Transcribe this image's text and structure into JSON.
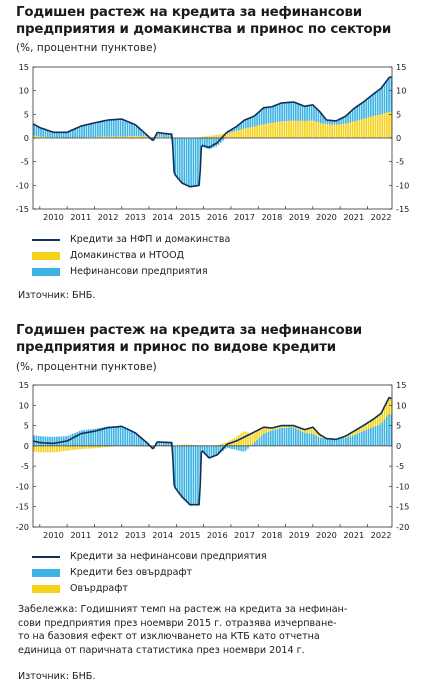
{
  "colors": {
    "line": "#10305a",
    "blue": "#3db3e3",
    "yellow": "#f6d21b",
    "axis": "#333333"
  },
  "chart1": {
    "title_lines": [
      "Годишен растеж на кредита за нефинансови",
      "предприятия и домакинства и принос по сектори"
    ],
    "units": "(%, процентни пунктове)",
    "source": "Източник: БНБ.",
    "legend": [
      "Кредити за НФП и домакинства",
      "Домакинства и НТООД",
      "Нефинансови предприятия"
    ]
  },
  "chart2": {
    "title_lines": [
      "Годишен растеж на кредита за нефинансови",
      "предприятия и принос по видове кредити"
    ],
    "units": "(%, процентни пунктове)",
    "legend": [
      "Кредити за нефинансови предприятия",
      "Кредити без овърдрафт",
      "Овърдрафт"
    ],
    "note_lines": [
      "Забележка: Годишният темп на растеж на кредита за нефинан-",
      "сови предприятия през ноември 2015 г. отразява изчерпване-",
      "то на базовия ефект от изключването на КТБ като отчетна",
      "единица от паричната статистика през ноември 2014 г."
    ],
    "source": "Източник: БНБ."
  },
  "chart_data": [
    {
      "type": "bar",
      "stacked": true,
      "title": "Годишен растеж на кредита за нефинансови предприятия и домакинства и принос по сектори",
      "ylabel": "(%, процентни пунктове)",
      "x_ticks": [
        "2010",
        "2011",
        "2012",
        "2013",
        "2014",
        "2015",
        "2016",
        "2017",
        "2018",
        "2019",
        "2020",
        "2021",
        "2022"
      ],
      "x_range": [
        2009.75,
        2022.9
      ],
      "ylim": [
        -15,
        15
      ],
      "y_ticks": [
        -15,
        -10,
        -5,
        0,
        5,
        10,
        15
      ],
      "dual_y_axis": true,
      "grid": false,
      "legend_position": "below",
      "anchors_x": [
        2009.75,
        2010.0,
        2010.5,
        2011.0,
        2011.5,
        2012.0,
        2012.5,
        2013.0,
        2013.5,
        2013.95,
        2014.15,
        2014.3,
        2014.5,
        2014.85,
        2014.92,
        2015.2,
        2015.5,
        2015.85,
        2015.92,
        2016.2,
        2016.5,
        2016.85,
        2017.2,
        2017.5,
        2017.85,
        2018.2,
        2018.5,
        2018.85,
        2019.3,
        2019.7,
        2020.0,
        2020.25,
        2020.5,
        2020.85,
        2021.2,
        2021.5,
        2021.85,
        2022.2,
        2022.5,
        2022.8,
        2022.9
      ],
      "series": [
        {
          "name": "Кредити за НФП и домакинства",
          "kind": "line",
          "values": [
            3.0,
            2.2,
            1.2,
            1.2,
            2.5,
            3.2,
            3.8,
            4.0,
            2.8,
            0.5,
            -0.6,
            1.2,
            1.0,
            0.8,
            -7.5,
            -9.5,
            -10.3,
            -10.0,
            -1.5,
            -2.0,
            -1.0,
            1.2,
            2.4,
            3.8,
            4.6,
            6.4,
            6.6,
            7.4,
            7.6,
            6.7,
            7.0,
            5.6,
            3.8,
            3.6,
            4.6,
            6.2,
            7.6,
            9.2,
            10.5,
            12.8,
            13.0
          ]
        },
        {
          "name": "Домакинства и НТООД",
          "kind": "bar",
          "color": "yellow",
          "values": [
            0.5,
            0.3,
            0.1,
            0.0,
            0.1,
            0.2,
            0.3,
            0.3,
            0.4,
            0.3,
            0.2,
            0.3,
            0.2,
            0.1,
            0.1,
            -0.1,
            -0.1,
            0.1,
            0.3,
            0.4,
            0.7,
            1.0,
            1.5,
            2.0,
            2.4,
            2.9,
            3.2,
            3.5,
            3.7,
            3.6,
            3.7,
            3.2,
            2.9,
            2.8,
            3.0,
            3.5,
            4.0,
            4.6,
            5.0,
            5.5,
            5.6
          ]
        },
        {
          "name": "Нефинансови предприятия",
          "kind": "bar",
          "color": "blue",
          "values": [
            2.5,
            1.9,
            1.1,
            1.2,
            2.4,
            3.0,
            3.5,
            3.7,
            2.4,
            0.2,
            -0.8,
            0.9,
            0.8,
            0.7,
            -7.6,
            -9.4,
            -10.2,
            -10.1,
            -1.8,
            -2.4,
            -1.7,
            0.2,
            0.9,
            1.8,
            2.2,
            3.5,
            3.4,
            3.9,
            3.9,
            3.1,
            3.3,
            2.4,
            0.9,
            0.8,
            1.6,
            2.7,
            3.6,
            4.6,
            5.5,
            7.3,
            7.4
          ]
        }
      ]
    },
    {
      "type": "bar",
      "stacked": true,
      "title": "Годишен растеж на кредита за нефинансови предприятия и принос по видове кредити",
      "ylabel": "(%, процентни пунктове)",
      "x_ticks": [
        "2010",
        "2011",
        "2012",
        "2013",
        "2014",
        "2015",
        "2016",
        "2017",
        "2018",
        "2019",
        "2020",
        "2021",
        "2022"
      ],
      "x_range": [
        2009.75,
        2022.9
      ],
      "ylim": [
        -20,
        15
      ],
      "y_ticks": [
        -20,
        -15,
        -10,
        -5,
        0,
        5,
        10,
        15
      ],
      "dual_y_axis": true,
      "grid": false,
      "legend_position": "below",
      "anchors_x": [
        2009.75,
        2010.0,
        2010.5,
        2011.0,
        2011.5,
        2012.0,
        2012.5,
        2013.0,
        2013.5,
        2013.95,
        2014.15,
        2014.3,
        2014.5,
        2014.85,
        2014.92,
        2015.2,
        2015.5,
        2015.85,
        2015.92,
        2016.2,
        2016.5,
        2016.85,
        2017.2,
        2017.5,
        2017.85,
        2018.2,
        2018.5,
        2018.85,
        2019.3,
        2019.7,
        2020.0,
        2020.25,
        2020.5,
        2020.85,
        2021.2,
        2021.5,
        2021.85,
        2022.2,
        2022.5,
        2022.8,
        2022.9
      ],
      "series": [
        {
          "name": "Кредити за нефинансови предприятия",
          "kind": "line",
          "values": [
            1.2,
            0.8,
            0.6,
            1.2,
            3.0,
            3.6,
            4.5,
            4.8,
            3.2,
            0.6,
            -0.8,
            1.0,
            0.9,
            0.8,
            -10.0,
            -12.5,
            -14.5,
            -14.5,
            -1.0,
            -3.0,
            -2.2,
            0.4,
            1.2,
            2.2,
            3.4,
            4.6,
            4.4,
            5.0,
            5.0,
            4.0,
            4.6,
            2.8,
            1.8,
            1.6,
            2.4,
            3.6,
            5.0,
            6.5,
            8.0,
            12.0,
            11.5
          ]
        },
        {
          "name": "Кредити без овърдрафт",
          "kind": "bar",
          "color": "blue",
          "values": [
            2.6,
            2.4,
            2.2,
            2.4,
            3.8,
            4.2,
            4.8,
            4.6,
            3.2,
            0.8,
            -0.6,
            1.0,
            1.1,
            1.0,
            -9.8,
            -12.8,
            -14.8,
            -14.6,
            -1.2,
            -2.8,
            -2.4,
            -0.5,
            -1.0,
            -1.5,
            0.8,
            3.0,
            3.8,
            4.4,
            4.6,
            3.2,
            3.0,
            2.0,
            1.8,
            1.6,
            2.0,
            2.6,
            3.6,
            4.6,
            5.4,
            8.0,
            7.5
          ]
        },
        {
          "name": "Овърдрафт",
          "kind": "bar",
          "color": "yellow",
          "values": [
            -1.4,
            -1.6,
            -1.6,
            -1.2,
            -0.8,
            -0.6,
            -0.3,
            0.2,
            0.0,
            -0.2,
            -0.2,
            0.0,
            -0.2,
            -0.2,
            -0.2,
            0.3,
            0.3,
            0.1,
            0.2,
            -0.2,
            0.2,
            0.9,
            2.2,
            3.7,
            2.6,
            1.6,
            0.6,
            0.6,
            0.4,
            0.8,
            1.6,
            0.8,
            0.0,
            0.0,
            0.4,
            1.0,
            1.4,
            1.9,
            2.6,
            4.0,
            4.0
          ]
        }
      ]
    }
  ]
}
